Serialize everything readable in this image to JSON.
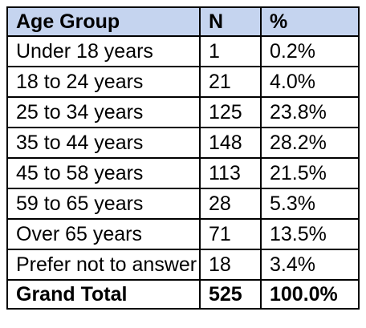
{
  "table": {
    "headers": [
      "Age Group",
      "N",
      "%"
    ],
    "rows": [
      [
        "Under 18 years",
        "1",
        "0.2%"
      ],
      [
        "18 to 24 years",
        "21",
        "4.0%"
      ],
      [
        "25 to 34 years",
        "125",
        "23.8%"
      ],
      [
        "35 to 44 years",
        "148",
        "28.2%"
      ],
      [
        "45 to 58 years",
        "113",
        "21.5%"
      ],
      [
        "59 to 65 years",
        "28",
        "5.3%"
      ],
      [
        "Over 65 years",
        "71",
        "13.5%"
      ],
      [
        "Prefer not to answer",
        "18",
        "3.4%"
      ]
    ],
    "total": [
      "Grand Total",
      "525",
      "100.0%"
    ]
  },
  "colors": {
    "header_background": "#c5d4ef",
    "border": "#000000",
    "text": "#000000"
  }
}
